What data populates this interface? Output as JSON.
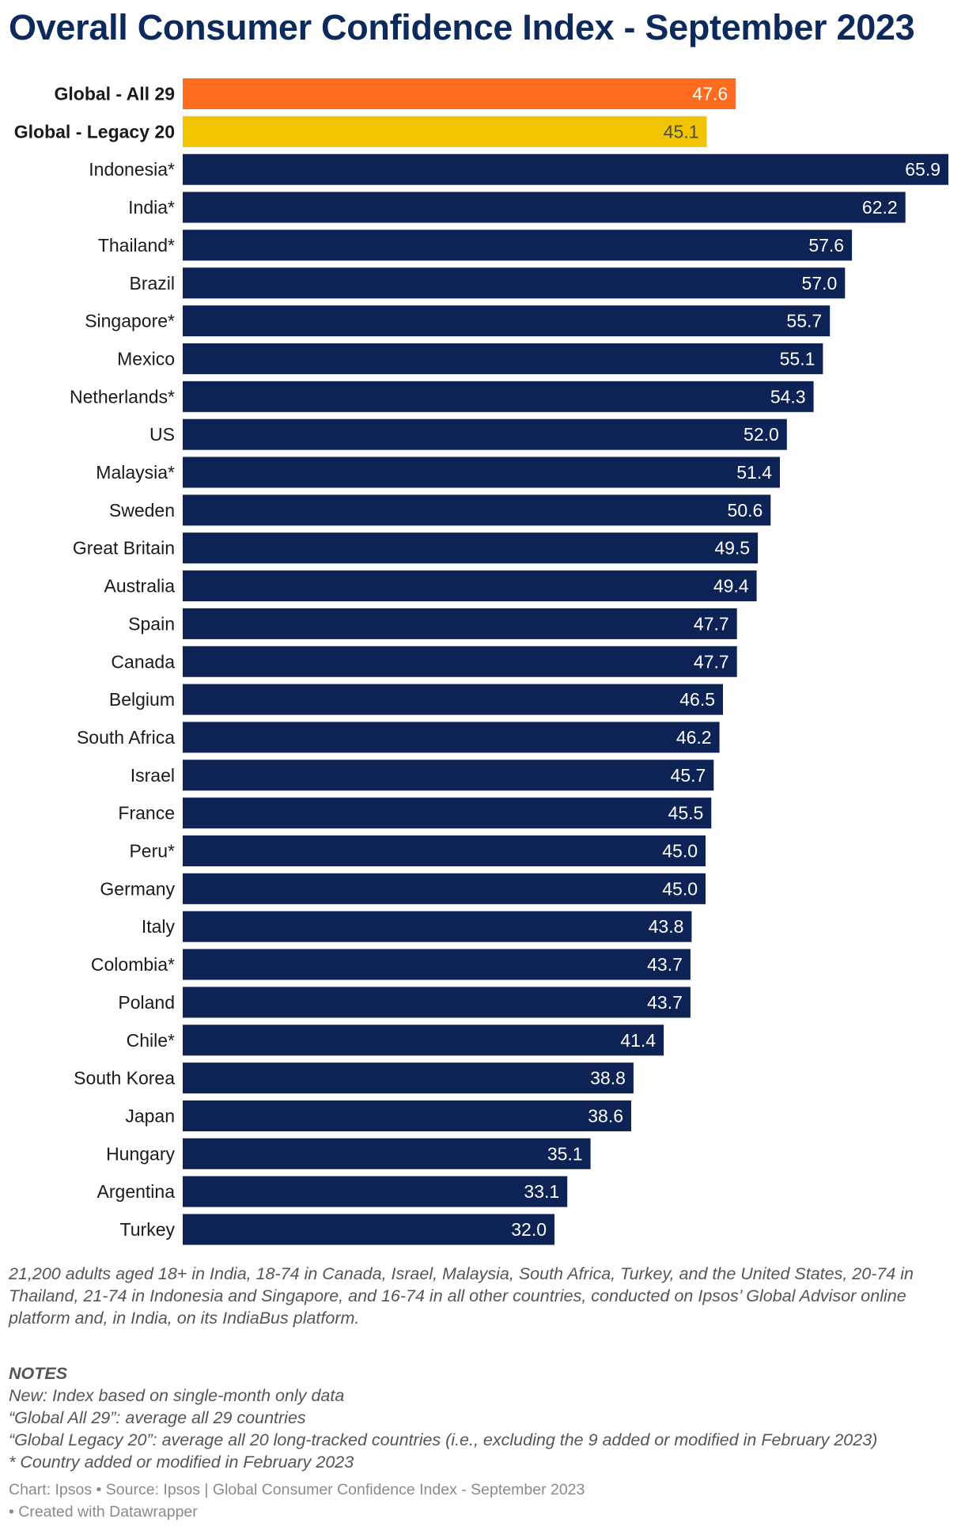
{
  "chart_data": {
    "type": "bar",
    "orientation": "horizontal",
    "title": "Overall Consumer Confidence Index - September 2023",
    "xlim": [
      0,
      65.9
    ],
    "grid": false,
    "categories": [
      "Global - All 29",
      "Global - Legacy 20",
      "Indonesia*",
      "India*",
      "Thailand*",
      "Brazil",
      "Singapore*",
      "Mexico",
      "Netherlands*",
      "US",
      "Malaysia*",
      "Sweden",
      "Great Britain",
      "Australia",
      "Spain",
      "Canada",
      "Belgium",
      "South Africa",
      "Israel",
      "France",
      "Peru*",
      "Germany",
      "Italy",
      "Colombia*",
      "Poland",
      "Chile*",
      "South Korea",
      "Japan",
      "Hungary",
      "Argentina",
      "Turkey"
    ],
    "values": [
      47.6,
      45.1,
      65.9,
      62.2,
      57.6,
      57.0,
      55.7,
      55.1,
      54.3,
      52.0,
      51.4,
      50.6,
      49.5,
      49.4,
      47.7,
      47.7,
      46.5,
      46.2,
      45.7,
      45.5,
      45.0,
      45.0,
      43.8,
      43.7,
      43.7,
      41.4,
      38.8,
      38.6,
      35.1,
      33.1,
      32.0
    ],
    "value_labels": [
      "47.6",
      "45.1",
      "65.9",
      "62.2",
      "57.6",
      "57.0",
      "55.7",
      "55.1",
      "54.3",
      "52.0",
      "51.4",
      "50.6",
      "49.5",
      "49.4",
      "47.7",
      "47.7",
      "46.5",
      "46.2",
      "45.7",
      "45.5",
      "45.0",
      "45.0",
      "43.8",
      "43.7",
      "43.7",
      "41.4",
      "38.8",
      "38.6",
      "35.1",
      "33.1",
      "32.0"
    ],
    "highlighted": {
      "Global - All 29": "#ff6b1f",
      "Global - Legacy 20": "#f0c400"
    },
    "default_color": "#0d2355"
  },
  "colors": {
    "title": "#0d2a5c",
    "bar_default": "#0d2355",
    "bar_global_all": "#ff6b1f",
    "bar_global_legacy": "#f0c400",
    "label_on_dark": "#ffffff",
    "label_on_light": "#ffffff",
    "label_on_yellow": "#4a4a4a"
  },
  "description": "21,200 adults aged 18+ in India, 18-74 in Canada, Israel, Malaysia, South Africa, Turkey, and the United States, 20-74 in Thailand, 21-74 in Indonesia and Singapore, and 16-74 in all other countries, conducted on Ipsos’ Global Advisor online platform and, in India, on its IndiaBus platform.",
  "notes": {
    "heading": "NOTES",
    "lines": [
      "New: Index based on single-month only data",
      "“Global All 29”: average all 29 countries",
      "“Global Legacy 20”: average all 20 long-tracked countries (i.e., excluding the 9 added or modified in February 2023)",
      "* Country added or modified in February 2023"
    ]
  },
  "footer": {
    "line1": "Chart: Ipsos • Source: Ipsos | Global Consumer Confidence Index - September 2023",
    "line2": "• Created with Datawrapper"
  }
}
